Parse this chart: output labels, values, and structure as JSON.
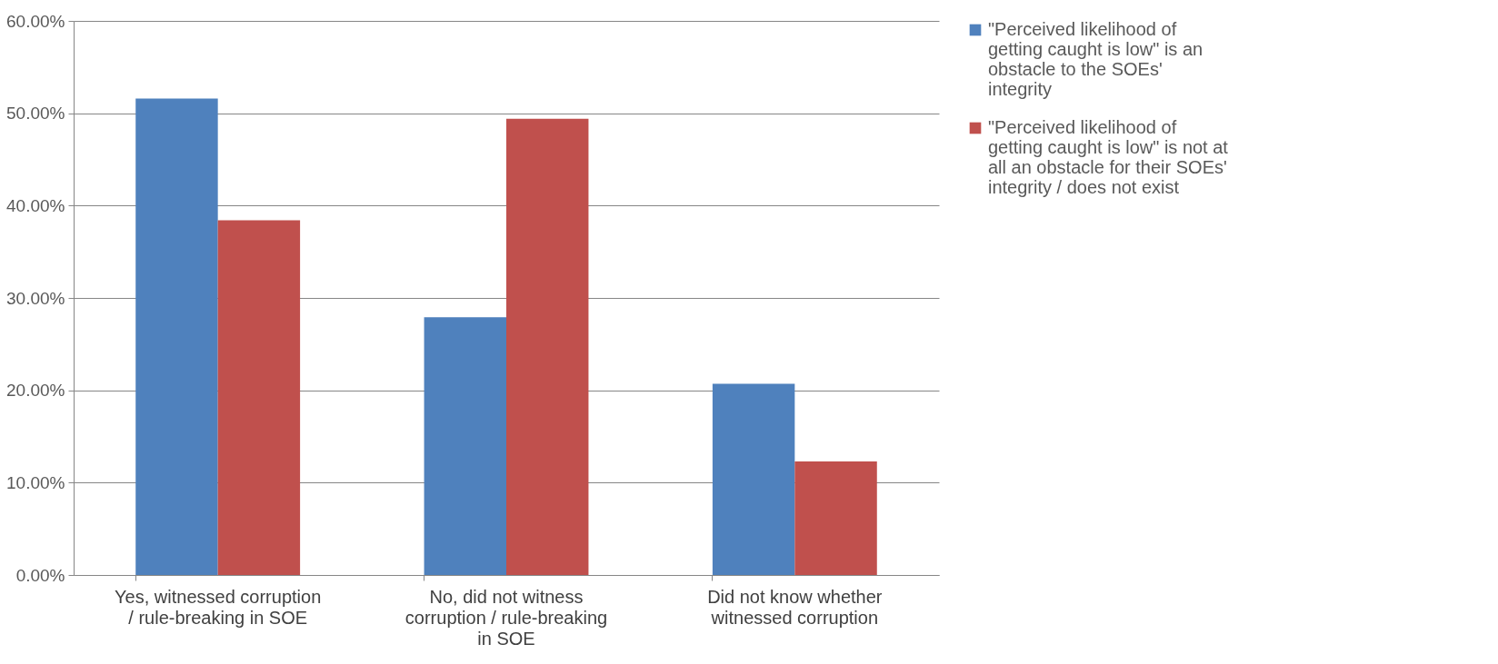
{
  "chart_data": {
    "type": "bar",
    "categories": [
      "Yes, witnessed corruption / rule-breaking in SOE",
      "No, did not witness corruption / rule-breaking in SOE",
      "Did not know whether witnessed corruption"
    ],
    "series": [
      {
        "name": "\"Perceived likelihood of getting caught is low\" is an obstacle to the SOEs' integrity",
        "color": "#4f81bd",
        "values": [
          51.6,
          27.9,
          20.7
        ]
      },
      {
        "name": "\"Perceived likelihood of getting caught is low\" is not at all an obstacle for their SOEs' integrity / does not exist",
        "color": "#c0504d",
        "values": [
          38.4,
          49.4,
          12.3
        ]
      }
    ],
    "ylim": [
      0,
      60
    ],
    "yticks": [
      {
        "value": 0,
        "label": "0.00%"
      },
      {
        "value": 10,
        "label": "10.00%"
      },
      {
        "value": 20,
        "label": "20.00%"
      },
      {
        "value": 30,
        "label": "30.00%"
      },
      {
        "value": 40,
        "label": "40.00%"
      },
      {
        "value": 50,
        "label": "50.00%"
      },
      {
        "value": 60,
        "label": "60.00%"
      }
    ],
    "grid": "y",
    "legend": "right"
  }
}
